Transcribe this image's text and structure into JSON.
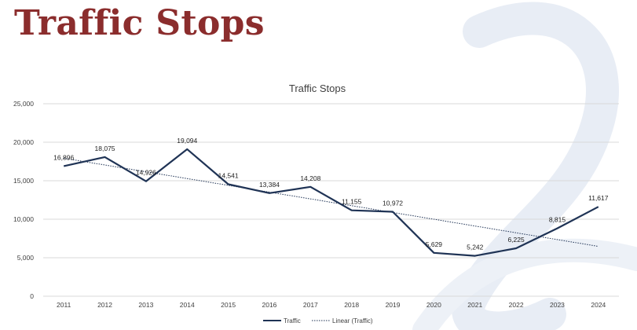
{
  "slide": {
    "title": "Traffic Stops"
  },
  "colors": {
    "title": "#8b2d2d",
    "series": "#1f3355",
    "trend": "#1f3355",
    "axis_text": "#404040",
    "grid": "#d9d9d9"
  },
  "chart_data": {
    "type": "line",
    "title": "Traffic Stops",
    "categories": [
      "2011",
      "2012",
      "2013",
      "2014",
      "2015",
      "2016",
      "2017",
      "2018",
      "2019",
      "2020",
      "2021",
      "2022",
      "2023",
      "2024"
    ],
    "series": [
      {
        "name": "Traffic",
        "values": [
          16896,
          18075,
          14926,
          19094,
          14541,
          13384,
          14208,
          11155,
          10972,
          5629,
          5242,
          6225,
          8815,
          11617
        ],
        "labels": [
          "16,896",
          "18,075",
          "14,926",
          "19,094",
          "14,541",
          "13,384",
          "14,208",
          "11,155",
          "10,972",
          "5,629",
          "5,242",
          "6,225",
          "8,815",
          "11,617"
        ]
      }
    ],
    "trendline": {
      "name": "Linear (Traffic)",
      "type": "linear",
      "series": "Traffic"
    },
    "ylim": [
      0,
      25000
    ],
    "yticks": [
      0,
      5000,
      10000,
      15000,
      20000,
      25000
    ],
    "ytick_labels": [
      "0",
      "5,000",
      "10,000",
      "15,000",
      "20,000",
      "25,000"
    ],
    "grid": true,
    "legend": {
      "position": "bottom",
      "entries": [
        "Traffic",
        "Linear (Traffic)"
      ]
    }
  }
}
